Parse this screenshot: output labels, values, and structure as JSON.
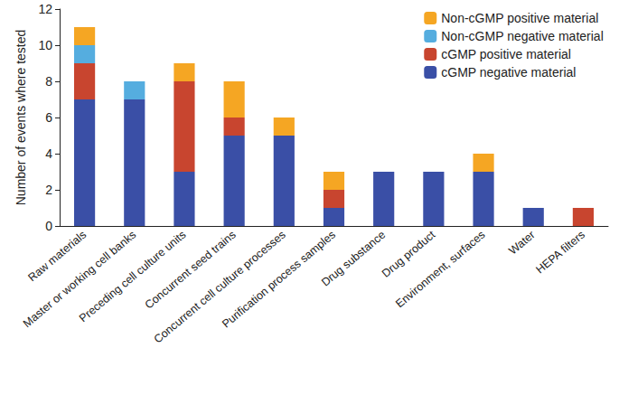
{
  "chart_data": {
    "type": "bar",
    "stacked": true,
    "y_label": "Number of events where tested",
    "categories": [
      "Raw materials",
      "Master or working cell banks",
      "Preceding cell culture units",
      "Concurrent seed trains",
      "Concurrent cell culture processes",
      "Purification process samples",
      "Drug substance",
      "Drug product",
      "Environment, surfaces",
      "Water",
      "HEPA filters"
    ],
    "series": [
      {
        "name": "cGMP negative material",
        "color": "#3a4fa6",
        "values": [
          7,
          7,
          3,
          5,
          5,
          1,
          3,
          3,
          3,
          1,
          0
        ]
      },
      {
        "name": "cGMP positive material",
        "color": "#c8452f",
        "values": [
          2,
          0,
          5,
          1,
          0,
          1,
          0,
          0,
          0,
          0,
          1
        ]
      },
      {
        "name": "Non-cGMP negative material",
        "color": "#55addf",
        "values": [
          1,
          1,
          0,
          0,
          0,
          0,
          0,
          0,
          0,
          0,
          0
        ]
      },
      {
        "name": "Non-cGMP positive material",
        "color": "#f5a623",
        "values": [
          1,
          0,
          1,
          2,
          1,
          1,
          0,
          0,
          1,
          0,
          0
        ]
      }
    ],
    "ylim": [
      0,
      12
    ],
    "yticks": [
      0,
      2,
      4,
      6,
      8,
      10,
      12
    ],
    "grid": false,
    "legend": "top-right"
  }
}
